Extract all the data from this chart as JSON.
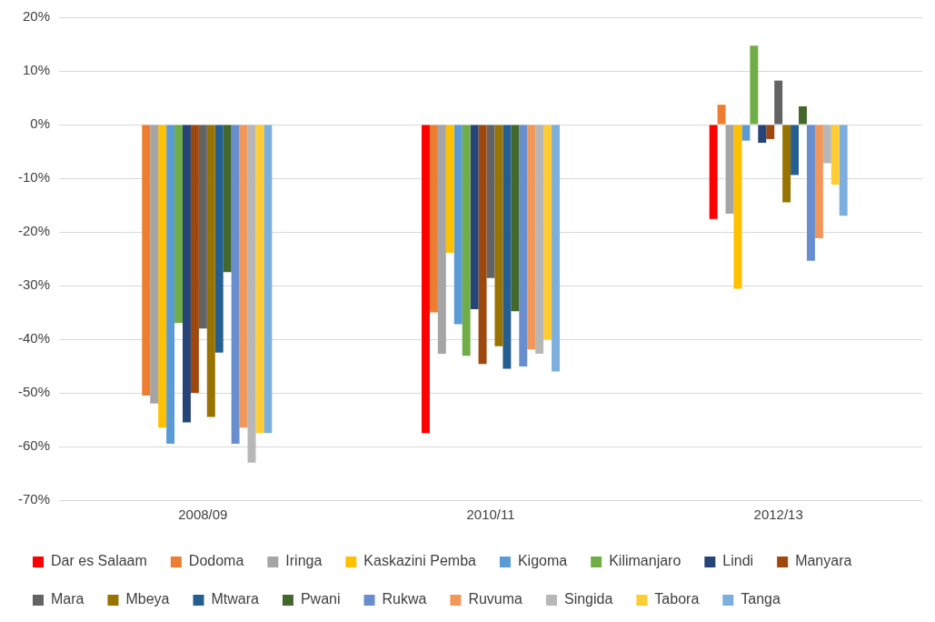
{
  "chart_data": {
    "type": "bar",
    "categories": [
      "2008/09",
      "2010/11",
      "2012/13"
    ],
    "series": [
      {
        "name": "Dar es Salaam",
        "color": "#ff0000",
        "values": [
          null,
          -57.5,
          -17.6
        ]
      },
      {
        "name": "Dodoma",
        "color": "#ed7d31",
        "values": [
          -50.5,
          -35,
          3.7
        ]
      },
      {
        "name": "Iringa",
        "color": "#a5a5a5",
        "values": [
          -52,
          -42.7,
          -16.6
        ]
      },
      {
        "name": "Kaskazini Pemba",
        "color": "#ffc000",
        "values": [
          -56.5,
          -23.9,
          -30.6
        ]
      },
      {
        "name": "Kigoma",
        "color": "#5b9bd5",
        "values": [
          -59.5,
          -37.2,
          -3
        ]
      },
      {
        "name": "Kilimanjaro",
        "color": "#70ad47",
        "values": [
          -37,
          -43.1,
          14.7
        ]
      },
      {
        "name": "Lindi",
        "color": "#264478",
        "values": [
          -55.5,
          -34.4,
          -3.4
        ]
      },
      {
        "name": "Manyara",
        "color": "#9e480e",
        "values": [
          -50,
          -44.6,
          -2.7
        ]
      },
      {
        "name": "Mara",
        "color": "#636363",
        "values": [
          -38,
          -28.6,
          8.2
        ]
      },
      {
        "name": "Mbeya",
        "color": "#997300",
        "values": [
          -54.5,
          -41.3,
          -14.5
        ]
      },
      {
        "name": "Mtwara",
        "color": "#255e91",
        "values": [
          -42.5,
          -45.5,
          -9.4
        ]
      },
      {
        "name": "Pwani",
        "color": "#43682b",
        "values": [
          -27.5,
          -34.8,
          3.4
        ]
      },
      {
        "name": "Rukwa",
        "color": "#698ed0",
        "values": [
          -59.5,
          -45.1,
          -25.4
        ]
      },
      {
        "name": "Ruvuma",
        "color": "#f1975a",
        "values": [
          -56.5,
          -41.9,
          -21.2
        ]
      },
      {
        "name": "Singida",
        "color": "#b7b7b7",
        "values": [
          -63,
          -42.7,
          -7.2
        ]
      },
      {
        "name": "Tabora",
        "color": "#ffcd33",
        "values": [
          -57.5,
          -40,
          -11.2
        ]
      },
      {
        "name": "Tanga",
        "color": "#7cafdd",
        "values": [
          -57.5,
          -46,
          -17
        ]
      }
    ],
    "ylim": [
      -70,
      20
    ],
    "yticks": [
      {
        "value": -70,
        "label": "-70%"
      },
      {
        "value": -60,
        "label": "-60%"
      },
      {
        "value": -50,
        "label": "-50%"
      },
      {
        "value": -40,
        "label": "-40%"
      },
      {
        "value": -30,
        "label": "-30%"
      },
      {
        "value": -20,
        "label": "-20%"
      },
      {
        "value": -10,
        "label": "-10%"
      },
      {
        "value": 0,
        "label": "0%"
      },
      {
        "value": 10,
        "label": "10%"
      },
      {
        "value": 20,
        "label": "20%"
      }
    ],
    "grid": "y",
    "legend": "bottom"
  }
}
